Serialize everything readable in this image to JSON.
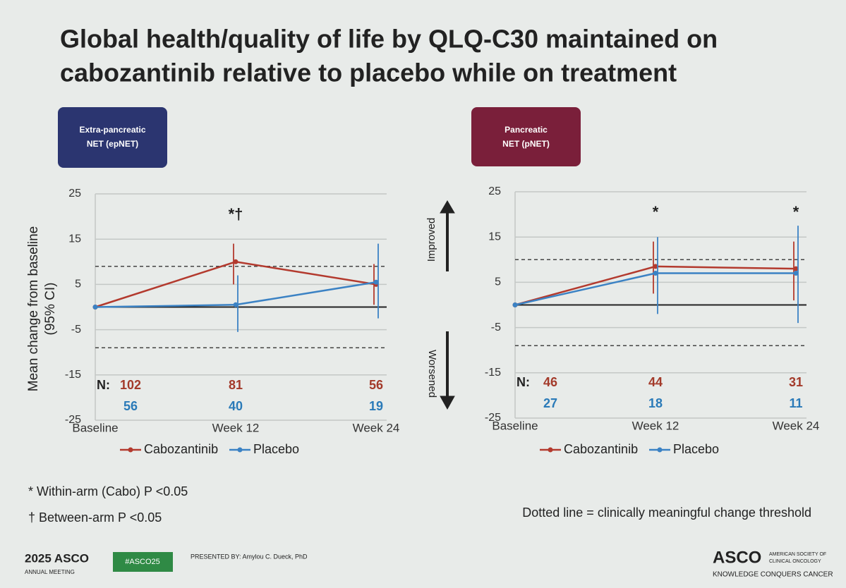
{
  "slide": {
    "title": [
      "Global health/quality of life by QLQ-C30 maintained on",
      "cabozantinib relative to placebo while on treatment"
    ],
    "y_label": [
      "Mean change from baseline",
      "(95% CI)"
    ],
    "improved": "Improved",
    "worsened": "Worsened",
    "footnotes": [
      "* Within-arm (Cabo) P <0.05",
      "† Between-arm P <0.05"
    ],
    "threshold_note": "Dotted line = clinically meaningful change threshold",
    "footer": {
      "meeting": "2025 ASCO",
      "meeting_sub": "ANNUAL MEETING",
      "hashtag": "#ASCO25",
      "presenter": "PRESENTED BY: Amylou C. Dueck, PhD",
      "logo": "ASCO",
      "society": [
        "AMERICAN SOCIETY OF",
        "CLINICAL ONCOLOGY"
      ],
      "tagline": "KNOWLEDGE CONQUERS CANCER"
    }
  },
  "chart_data": [
    {
      "type": "line",
      "label": [
        "Extra-pancreatic",
        "NET (epNET)"
      ],
      "badge_color": "#2b3570",
      "categories": [
        "Baseline",
        "Week 12",
        "Week 24"
      ],
      "n_label": "N:",
      "series": [
        {
          "name": "Cabozantinib",
          "color": "#b33a2e",
          "values": [
            0,
            10,
            5
          ],
          "ci_low": [
            null,
            5,
            0.5
          ],
          "ci_high": [
            null,
            14,
            9.5
          ],
          "n": [
            102,
            81,
            56
          ]
        },
        {
          "name": "Placebo",
          "color": "#3b82c4",
          "values": [
            0,
            0.5,
            5.5
          ],
          "ci_low": [
            null,
            -5.5,
            -2.5
          ],
          "ci_high": [
            null,
            7,
            14
          ],
          "n": [
            56,
            40,
            19
          ]
        }
      ],
      "annotations": [
        {
          "x": "Week 12",
          "text": "*†"
        }
      ],
      "thresholds": [
        9,
        -9
      ],
      "ylim": [
        -25,
        25
      ],
      "yticks": [
        -25,
        -15,
        -5,
        5,
        15,
        25
      ],
      "grid": true
    },
    {
      "type": "line",
      "label": [
        "Pancreatic",
        "NET (pNET)"
      ],
      "badge_color": "#7a1f3a",
      "categories": [
        "Baseline",
        "Week 12",
        "Week 24"
      ],
      "n_label": "N:",
      "series": [
        {
          "name": "Cabozantinib",
          "color": "#b33a2e",
          "values": [
            0,
            8.5,
            8
          ],
          "ci_low": [
            null,
            2.5,
            1
          ],
          "ci_high": [
            null,
            14,
            14
          ],
          "n": [
            46,
            44,
            31
          ]
        },
        {
          "name": "Placebo",
          "color": "#3b82c4",
          "values": [
            0,
            7,
            7
          ],
          "ci_low": [
            null,
            -2,
            -4
          ],
          "ci_high": [
            null,
            15,
            17.5
          ],
          "n": [
            27,
            18,
            11
          ]
        }
      ],
      "annotations": [
        {
          "x": "Week 12",
          "text": "*"
        },
        {
          "x": "Week 24",
          "text": "*"
        }
      ],
      "thresholds": [
        10,
        -9
      ],
      "ylim": [
        -25,
        25
      ],
      "yticks": [
        -25,
        -15,
        -5,
        5,
        15,
        25
      ],
      "grid": true
    }
  ]
}
